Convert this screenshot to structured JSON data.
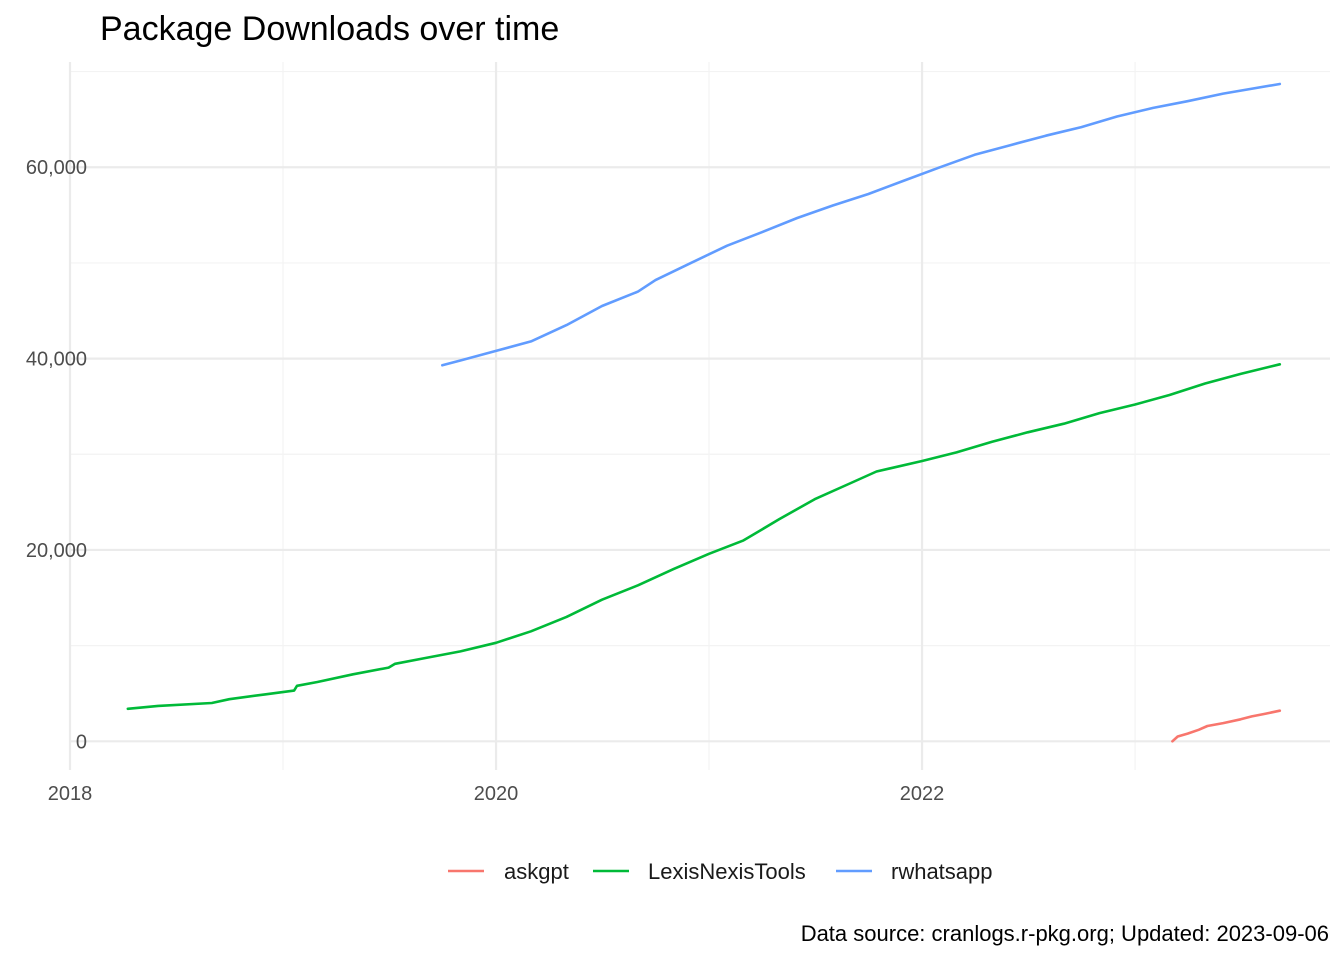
{
  "chart_data": {
    "type": "line",
    "title": "Package Downloads over time",
    "caption": "Data source: cranlogs.r-pkg.org; Updated: 2023-09-06",
    "xlabel": "",
    "ylabel": "",
    "x_ticks": [
      "2018",
      "2020",
      "2022"
    ],
    "y_ticks": [
      {
        "value": 0,
        "label": "0"
      },
      {
        "value": 20000,
        "label": "20,000"
      },
      {
        "value": 40000,
        "label": "40,000"
      },
      {
        "value": 60000,
        "label": "60,000"
      }
    ],
    "xlim": [
      "2018-01-01",
      "2023-12-01"
    ],
    "ylim": [
      -3000,
      71000
    ],
    "grid": true,
    "legend_position": "bottom",
    "series": [
      {
        "name": "askgpt",
        "color": "#F8766D",
        "points": [
          [
            "2023-03-06",
            0
          ],
          [
            "2023-03-15",
            500
          ],
          [
            "2023-04-01",
            800
          ],
          [
            "2023-04-20",
            1200
          ],
          [
            "2023-05-05",
            1600
          ],
          [
            "2023-06-01",
            1900
          ],
          [
            "2023-07-01",
            2300
          ],
          [
            "2023-07-20",
            2600
          ],
          [
            "2023-08-10",
            2850
          ],
          [
            "2023-09-06",
            3200
          ]
        ]
      },
      {
        "name": "LexisNexisTools",
        "color": "#00BA38",
        "points": [
          [
            "2018-04-10",
            3400
          ],
          [
            "2018-06-01",
            3700
          ],
          [
            "2018-09-01",
            4000
          ],
          [
            "2018-10-01",
            4400
          ],
          [
            "2018-12-01",
            4900
          ],
          [
            "2019-01-20",
            5300
          ],
          [
            "2019-01-25",
            5800
          ],
          [
            "2019-03-01",
            6200
          ],
          [
            "2019-05-01",
            7000
          ],
          [
            "2019-07-01",
            7700
          ],
          [
            "2019-07-12",
            8100
          ],
          [
            "2019-09-01",
            8700
          ],
          [
            "2019-11-01",
            9400
          ],
          [
            "2020-01-01",
            10300
          ],
          [
            "2020-03-01",
            11500
          ],
          [
            "2020-05-01",
            13000
          ],
          [
            "2020-07-01",
            14800
          ],
          [
            "2020-09-01",
            16300
          ],
          [
            "2020-11-01",
            18000
          ],
          [
            "2021-01-01",
            19600
          ],
          [
            "2021-03-01",
            21000
          ],
          [
            "2021-05-01",
            23200
          ],
          [
            "2021-07-01",
            25300
          ],
          [
            "2021-09-01",
            27000
          ],
          [
            "2021-10-15",
            28200
          ],
          [
            "2022-01-01",
            29300
          ],
          [
            "2022-03-01",
            30200
          ],
          [
            "2022-05-01",
            31300
          ],
          [
            "2022-07-01",
            32300
          ],
          [
            "2022-09-01",
            33200
          ],
          [
            "2022-11-01",
            34300
          ],
          [
            "2023-01-01",
            35200
          ],
          [
            "2023-03-01",
            36200
          ],
          [
            "2023-05-01",
            37400
          ],
          [
            "2023-07-01",
            38400
          ],
          [
            "2023-09-06",
            39400
          ]
        ]
      },
      {
        "name": "rwhatsapp",
        "color": "#619CFF",
        "points": [
          [
            "2019-10-01",
            39300
          ],
          [
            "2019-11-01",
            39800
          ],
          [
            "2020-01-01",
            40800
          ],
          [
            "2020-03-01",
            41800
          ],
          [
            "2020-05-01",
            43500
          ],
          [
            "2020-07-01",
            45500
          ],
          [
            "2020-09-01",
            47000
          ],
          [
            "2020-10-01",
            48200
          ],
          [
            "2020-12-01",
            50000
          ],
          [
            "2021-02-01",
            51800
          ],
          [
            "2021-04-01",
            53200
          ],
          [
            "2021-06-01",
            54700
          ],
          [
            "2021-08-01",
            56000
          ],
          [
            "2021-10-01",
            57200
          ],
          [
            "2021-12-01",
            58600
          ],
          [
            "2022-02-01",
            60000
          ],
          [
            "2022-04-01",
            61300
          ],
          [
            "2022-06-01",
            62300
          ],
          [
            "2022-08-01",
            63300
          ],
          [
            "2022-10-01",
            64200
          ],
          [
            "2022-12-01",
            65300
          ],
          [
            "2023-02-01",
            66200
          ],
          [
            "2023-04-01",
            66900
          ],
          [
            "2023-06-01",
            67700
          ],
          [
            "2023-09-06",
            68700
          ]
        ]
      }
    ]
  }
}
